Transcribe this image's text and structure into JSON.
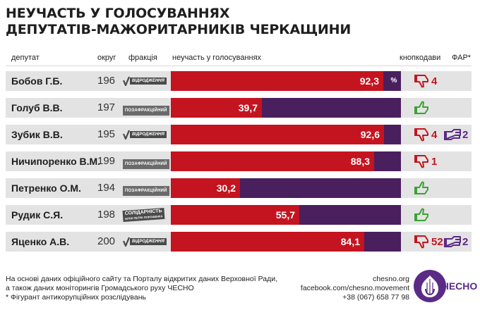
{
  "title": {
    "line1": "НЕУЧАСТЬ У ГОЛОСУВАННЯХ",
    "line2": "ДЕПУТАТІВ-МАЖОРИТАРНИКІВ ЧЕРКАЩИНИ"
  },
  "headers": {
    "deputy": "депутат",
    "district": "округ",
    "faction": "фракція",
    "absence": "неучасть у голосуваннях",
    "button_pushing": "кнопкодави",
    "far": "ФАР*"
  },
  "percent_sign": "%",
  "faction_labels": {
    "vidrodzhennia": "ВІДРОДЖЕННЯ",
    "nonfaction": "ПОЗАФРАКЦІЙНИЙ",
    "solidarnist": "СОЛІДАРНІСТЬ",
    "solidarnist_sub": "БЛОК ПЕТРА ПОРОШЕНКА"
  },
  "colors": {
    "absence": "#c4141f",
    "remainder": "#4a1f5e",
    "row_bg": "#e3e3e3",
    "far": "#5b2a86"
  },
  "chart_data": {
    "type": "bar",
    "orientation": "horizontal",
    "stacked_to": 100,
    "unit": "%",
    "categories": [
      "Бобов Г.Б.",
      "Голуб В.В.",
      "Зубик В.В.",
      "Ничипоренко В.М.",
      "Петренко О.М.",
      "Рудик С.Я.",
      "Яценко А.В."
    ],
    "values": [
      92.3,
      39.7,
      92.6,
      88.3,
      30.2,
      55.7,
      84.1
    ],
    "value_labels": [
      "92,3",
      "39,7",
      "92,6",
      "88,3",
      "30,2",
      "55,7",
      "84,1"
    ],
    "xlim": [
      0,
      100
    ]
  },
  "rows": [
    {
      "name": "Бобов Г.Б.",
      "district": "196",
      "faction": "vidrodzhennia",
      "button_icon": "thumbs-down-icon",
      "button_count": "4",
      "far": ""
    },
    {
      "name": "Голуб В.В.",
      "district": "197",
      "faction": "nonfaction",
      "button_icon": "thumbs-up-icon",
      "button_count": "",
      "far": ""
    },
    {
      "name": "Зубик В.В.",
      "district": "195",
      "faction": "vidrodzhennia",
      "button_icon": "thumbs-down-icon",
      "button_count": "4",
      "far": "2"
    },
    {
      "name": "Ничипоренко В.М.",
      "district": "199",
      "faction": "nonfaction",
      "button_icon": "thumbs-down-icon",
      "button_count": "1",
      "far": ""
    },
    {
      "name": "Петренко О.М.",
      "district": "194",
      "faction": "nonfaction",
      "button_icon": "thumbs-up-icon",
      "button_count": "",
      "far": ""
    },
    {
      "name": "Рудик С.Я.",
      "district": "198",
      "faction": "solidarnist",
      "button_icon": "thumbs-up-icon",
      "button_count": "",
      "far": ""
    },
    {
      "name": "Яценко А.В.",
      "district": "200",
      "faction": "vidrodzhennia",
      "button_icon": "thumbs-down-icon",
      "button_count": "52",
      "far": "2"
    }
  ],
  "footer": {
    "line1": "На основі даних офіційного сайту та Порталу відкритих даних Верховної Ради,",
    "line2": "а також даних моніторингів Громадського руху ЧЕСНО",
    "line3": "* Фігурант антикорупційних розслідувань",
    "site": "chesno.org",
    "facebook": "facebook.com/chesno.movement",
    "phone": "+38 (067) 658 77 98",
    "logo_text": "ЧЕСНО"
  }
}
